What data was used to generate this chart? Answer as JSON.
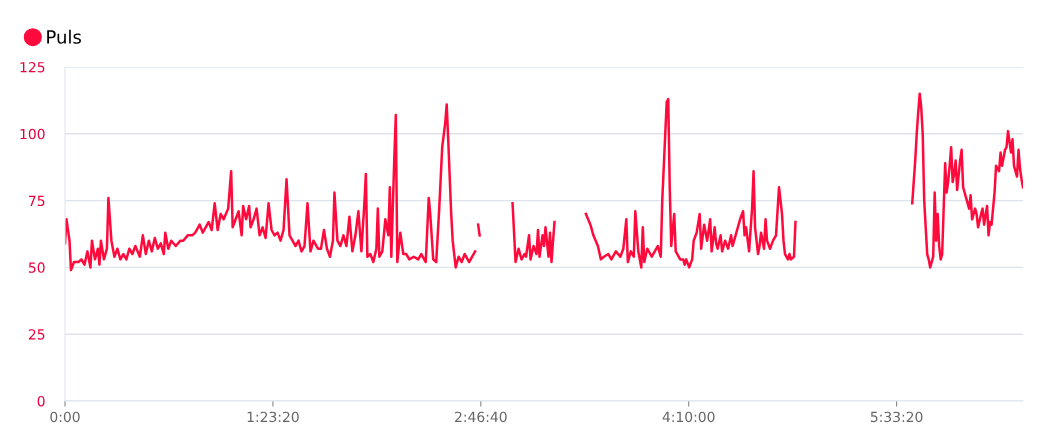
{
  "chart_data": {
    "type": "line",
    "legend": "top left",
    "grid": "y",
    "marker": "none",
    "line_style": "solid",
    "xlim": [
      0,
      6.4
    ],
    "ylim": [
      0,
      125
    ],
    "xticks": [
      {
        "value": 0,
        "label": "0:00"
      },
      {
        "value": 1.3889,
        "label": "1:23:20"
      },
      {
        "value": 2.7778,
        "label": "2:46:40"
      },
      {
        "value": 4.1667,
        "label": "4:10:00"
      },
      {
        "value": 5.5556,
        "label": "5:33:20"
      }
    ],
    "yticks": [
      0,
      25,
      50,
      75,
      100,
      125
    ],
    "series": [
      {
        "name": "Puls",
        "color": "#ff0a3c",
        "x": [
          0.0,
          0.01,
          0.03,
          0.04,
          0.06,
          0.09,
          0.11,
          0.13,
          0.15,
          0.17,
          0.18,
          0.2,
          0.22,
          0.23,
          0.24,
          0.26,
          0.28,
          0.29,
          0.31,
          0.33,
          0.35,
          0.37,
          0.39,
          0.41,
          0.43,
          0.45,
          0.47,
          0.5,
          0.52,
          0.54,
          0.56,
          0.58,
          0.6,
          0.62,
          0.64,
          0.66,
          0.67,
          0.69,
          0.71,
          0.74,
          0.77,
          0.79,
          0.82,
          0.85,
          0.87,
          0.9,
          0.92,
          0.94,
          0.96,
          0.98,
          1.0,
          1.02,
          1.04,
          1.06,
          1.09,
          1.11,
          1.12,
          1.14,
          1.16,
          1.18,
          1.19,
          1.21,
          1.23,
          1.24,
          1.26,
          1.28,
          1.3,
          1.32,
          1.34,
          1.36,
          1.38,
          1.4,
          1.42,
          1.44,
          1.46,
          1.48,
          1.5,
          1.52,
          1.54,
          1.56,
          1.58,
          1.6,
          1.62,
          1.64,
          1.66,
          1.69,
          1.71,
          1.73,
          1.75,
          1.77,
          1.79,
          1.8,
          1.82,
          1.84,
          1.86,
          1.88,
          1.9,
          1.92,
          1.94,
          1.96,
          1.98,
          2.0,
          2.01,
          2.02,
          2.04,
          2.06,
          2.08,
          2.09,
          2.1,
          2.12,
          2.14,
          2.16,
          2.17,
          2.18,
          2.2,
          2.21,
          2.22,
          2.24,
          2.26,
          2.28,
          2.3,
          2.33,
          2.36,
          2.38,
          2.41,
          2.43,
          2.44,
          2.46,
          2.48,
          2.5,
          2.52,
          2.54,
          2.55,
          2.56,
          2.58,
          2.59,
          2.61,
          2.63,
          2.65,
          2.67,
          2.7,
          2.72,
          2.74,
          2.75,
          2.76,
          2.77,
          2.9,
          2.99,
          3.01,
          3.03,
          3.05,
          3.07,
          3.08,
          3.1,
          3.11,
          3.13,
          3.15,
          3.16,
          3.17,
          3.19,
          3.2,
          3.21,
          3.23,
          3.24,
          3.25,
          3.27,
          3.4,
          3.48,
          3.51,
          3.53,
          3.56,
          3.58,
          3.6,
          3.63,
          3.65,
          3.68,
          3.71,
          3.73,
          3.75,
          3.76,
          3.78,
          3.8,
          3.81,
          3.83,
          3.85,
          3.86,
          3.87,
          3.89,
          3.92,
          3.94,
          3.96,
          3.98,
          3.99,
          4.01,
          4.02,
          4.03,
          4.04,
          4.05,
          4.07,
          4.08,
          4.11,
          4.13,
          4.14,
          4.15,
          4.17,
          4.19,
          4.2,
          4.22,
          4.24,
          4.25,
          4.27,
          4.29,
          4.31,
          4.32,
          4.34,
          4.35,
          4.36,
          4.38,
          4.39,
          4.41,
          4.43,
          4.45,
          4.46,
          4.48,
          4.51,
          4.53,
          4.54,
          4.55,
          4.57,
          4.59,
          4.6,
          4.61,
          4.63,
          4.64,
          4.65,
          4.67,
          4.68,
          4.69,
          4.71,
          4.73,
          4.75,
          4.77,
          4.79,
          4.8,
          4.81,
          4.83,
          4.84,
          4.85,
          4.87,
          4.88,
          5.3,
          5.66,
          5.67,
          5.68,
          5.69,
          5.7,
          5.71,
          5.72,
          5.73,
          5.74,
          5.75,
          5.76,
          5.77,
          5.78,
          5.8,
          5.81,
          5.82,
          5.83,
          5.84,
          5.85,
          5.86,
          5.88,
          5.89,
          5.9,
          5.91,
          5.92,
          5.93,
          5.94,
          5.95,
          5.96,
          5.98,
          5.99,
          6.0,
          6.02,
          6.04,
          6.05,
          6.06,
          6.08,
          6.09,
          6.1,
          6.12,
          6.13,
          6.14,
          6.16,
          6.17,
          6.18,
          6.19,
          6.2,
          6.21,
          6.22,
          6.24,
          6.25,
          6.26,
          6.28,
          6.29,
          6.3,
          6.32,
          6.33,
          6.34,
          6.36,
          6.37,
          6.38,
          6.39,
          6.4
        ],
        "values": [
          59,
          68,
          60,
          49,
          52,
          52,
          53,
          51,
          56,
          50,
          60,
          53,
          57,
          51,
          60,
          53,
          57,
          76,
          60,
          54,
          57,
          53,
          55,
          53,
          57,
          55,
          58,
          54,
          62,
          55,
          60,
          56,
          61,
          57,
          59,
          55,
          63,
          57,
          60,
          58,
          60,
          60,
          62,
          62,
          63,
          66,
          63,
          65,
          67,
          64,
          74,
          64,
          70,
          68,
          72,
          86,
          65,
          68,
          71,
          62,
          73,
          68,
          73,
          65,
          68,
          72,
          62,
          65,
          61,
          74,
          64,
          62,
          63,
          60,
          64,
          83,
          62,
          60,
          58,
          60,
          56,
          58,
          74,
          56,
          60,
          57,
          57,
          64,
          57,
          54,
          60,
          78,
          60,
          58,
          62,
          58,
          69,
          56,
          62,
          71,
          56,
          74,
          85,
          54,
          55,
          52,
          57,
          72,
          54,
          56,
          68,
          62,
          80,
          54,
          91,
          107,
          52,
          63,
          55,
          55,
          53,
          54,
          53,
          55,
          52,
          76,
          70,
          53,
          52,
          72,
          95,
          104,
          111,
          98,
          70,
          60,
          50,
          54,
          52,
          55,
          52,
          54,
          56,
          null,
          66,
          62,
          null,
          74,
          52,
          57,
          53,
          55,
          54,
          62,
          53,
          58,
          55,
          64,
          54,
          62,
          58,
          65,
          54,
          63,
          52,
          67,
          null,
          70,
          66,
          62,
          58,
          53,
          54,
          55,
          53,
          56,
          54,
          57,
          68,
          52,
          56,
          54,
          71,
          56,
          50,
          65,
          52,
          57,
          54,
          56,
          58,
          54,
          75,
          100,
          112,
          113,
          80,
          58,
          70,
          56,
          53,
          53,
          51,
          53,
          50,
          53,
          60,
          63,
          70,
          57,
          66,
          60,
          68,
          56,
          65,
          59,
          57,
          62,
          56,
          60,
          57,
          62,
          58,
          62,
          68,
          71,
          62,
          65,
          56,
          72,
          86,
          65,
          55,
          58,
          63,
          57,
          68,
          60,
          57,
          60,
          62,
          80,
          70,
          60,
          55,
          53,
          55,
          53,
          54,
          67,
          null,
          74,
          82,
          90,
          100,
          108,
          115,
          110,
          100,
          75,
          65,
          55,
          53,
          50,
          54,
          78,
          60,
          70,
          58,
          53,
          55,
          89,
          78,
          82,
          88,
          95,
          82,
          85,
          90,
          79,
          90,
          94,
          80,
          76,
          72,
          77,
          68,
          72,
          70,
          65,
          70,
          72,
          66,
          73,
          62,
          67,
          66,
          72,
          78,
          88,
          86,
          93,
          88,
          94,
          95,
          101,
          93,
          98,
          88,
          84,
          94,
          87,
          83,
          80
        ]
      }
    ]
  }
}
